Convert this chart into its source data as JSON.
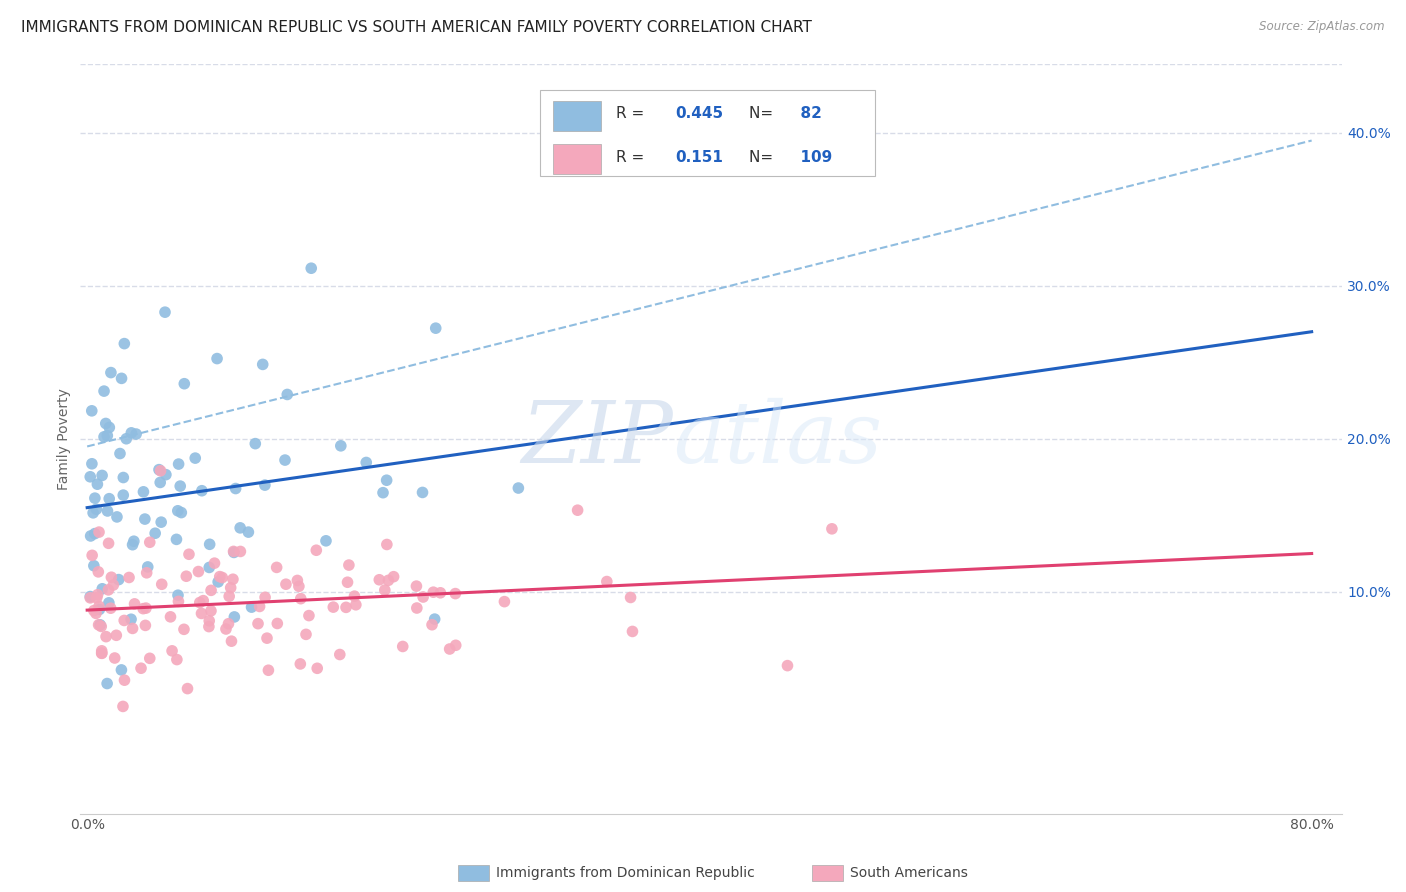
{
  "title": "IMMIGRANTS FROM DOMINICAN REPUBLIC VS SOUTH AMERICAN FAMILY POVERTY CORRELATION CHART",
  "source": "Source: ZipAtlas.com",
  "xlabel_ticks": [
    "0.0%",
    "80.0%"
  ],
  "xlabel_tick_vals": [
    0.0,
    0.8
  ],
  "ylabel_ticks": [
    "10.0%",
    "20.0%",
    "30.0%",
    "40.0%"
  ],
  "ylabel_tick_vals": [
    0.1,
    0.2,
    0.3,
    0.4
  ],
  "xlim": [
    -0.005,
    0.82
  ],
  "ylim": [
    -0.045,
    0.445
  ],
  "blue_color": "#90bde0",
  "pink_color": "#f4a8bc",
  "blue_line_color": "#2060c0",
  "pink_line_color": "#e04070",
  "dashed_line_color": "#90bde0",
  "R_blue": 0.445,
  "N_blue": 82,
  "R_pink": 0.151,
  "N_pink": 109,
  "legend_label_blue": "Immigrants from Dominican Republic",
  "legend_label_pink": "South Americans",
  "ylabel": "Family Poverty",
  "blue_line_y_start": 0.155,
  "blue_line_y_end": 0.27,
  "pink_line_y_start": 0.088,
  "pink_line_y_end": 0.125,
  "dashed_line_y_start": 0.195,
  "dashed_line_y_end": 0.395,
  "watermark_zip": "ZIP",
  "watermark_atlas": "atlas",
  "background_color": "#ffffff",
  "grid_color": "#d8dce8",
  "title_fontsize": 11,
  "axis_label_fontsize": 10,
  "tick_fontsize": 10
}
